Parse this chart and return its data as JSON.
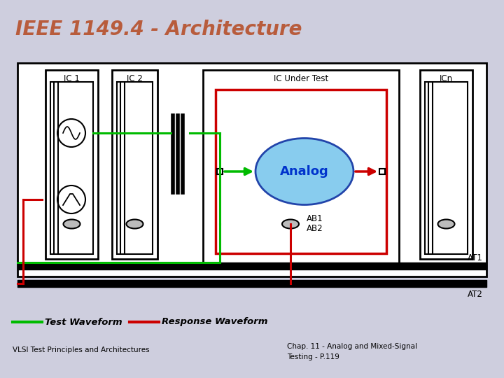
{
  "title": "IEEE 1149.4 - Architecture",
  "title_color": "#B85C3C",
  "title_fontsize": 20,
  "bg_color": "#CECEDE",
  "green_color": "#00BB00",
  "red_color": "#CC0000",
  "analog_fill": "#88CCEE",
  "analog_border": "#2244AA",
  "legend_test": "Test Waveform",
  "legend_response": "Response Waveform",
  "bottom_left": "VLSI Test Principles and Architectures",
  "bottom_right1": "Chap. 11 - Analog and Mixed-Signal",
  "bottom_right2": "Testing - P.119",
  "ic1_label": "IC 1",
  "ic2_label": "IC 2",
  "icut_label": "IC Under Test",
  "icn_label": "ICn",
  "ab1_label": "AB1",
  "ab2_label": "AB2",
  "at1_label": "AT1",
  "at2_label": "AT2"
}
